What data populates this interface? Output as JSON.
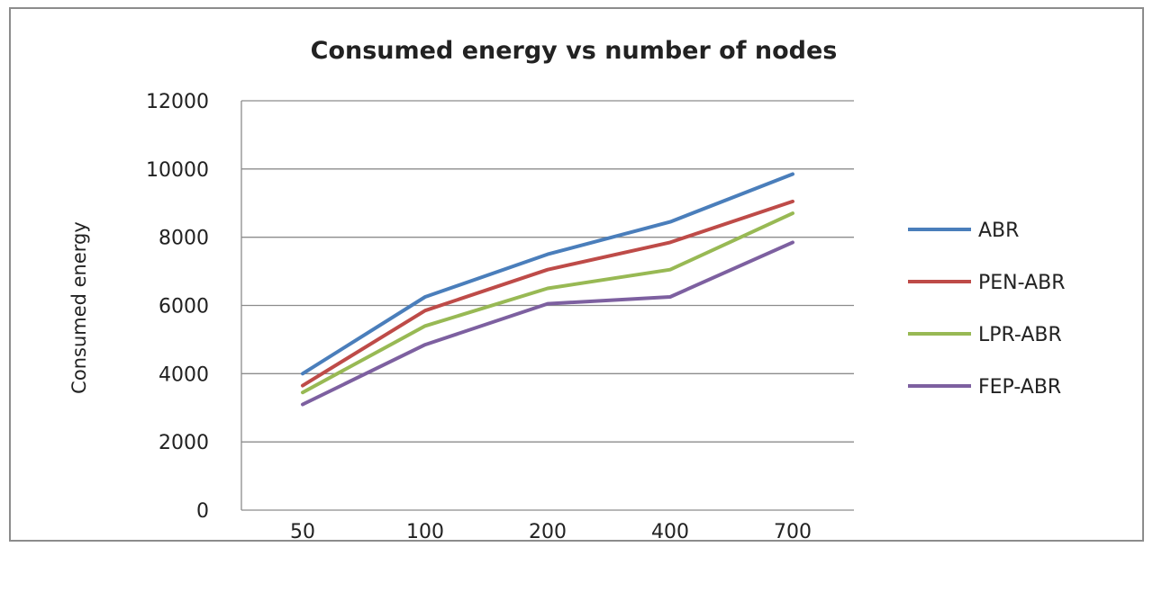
{
  "chart_data": {
    "type": "line",
    "title": "Consumed energy vs number of nodes",
    "xlabel": "",
    "ylabel": "Consumed energy",
    "categories": [
      "50",
      "100",
      "200",
      "400",
      "700"
    ],
    "ylim": [
      0,
      12000
    ],
    "yticks": [
      0,
      2000,
      4000,
      6000,
      8000,
      10000,
      12000
    ],
    "grid": "horizontal",
    "legend_position": "right",
    "series": [
      {
        "name": "ABR",
        "color": "#4a7ebb",
        "values": [
          4000,
          6250,
          7500,
          8450,
          9850
        ]
      },
      {
        "name": "PEN-ABR",
        "color": "#be4b48",
        "values": [
          3650,
          5850,
          7050,
          7850,
          9050
        ]
      },
      {
        "name": "LPR-ABR",
        "color": "#98b954",
        "values": [
          3450,
          5400,
          6500,
          7050,
          8700
        ]
      },
      {
        "name": "FEP-ABR",
        "color": "#7d60a0",
        "values": [
          3100,
          4850,
          6050,
          6250,
          7850
        ]
      }
    ]
  }
}
